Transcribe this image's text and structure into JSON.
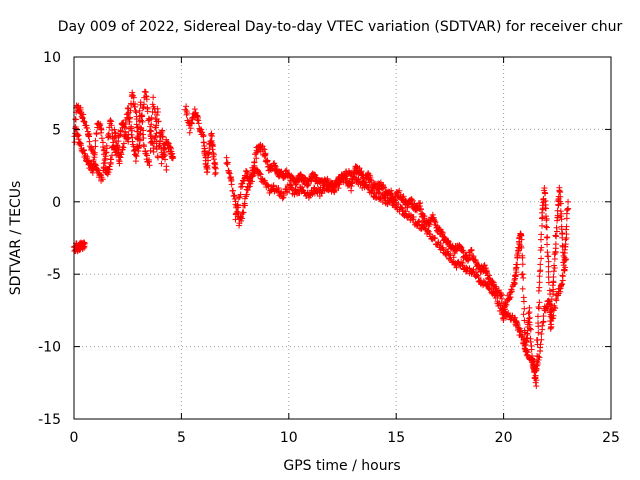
{
  "chart_data": {
    "type": "scatter",
    "title": "Day 009 of 2022, Sidereal Day-to-day VTEC variation (SDTVAR) for receiver chur",
    "xlabel": "GPS time / hours",
    "ylabel": "SDTVAR / TECUs",
    "xlim": [
      0,
      25
    ],
    "ylim": [
      -15,
      10
    ],
    "xticks": [
      0,
      5,
      10,
      15,
      20,
      25
    ],
    "yticks": [
      -15,
      -10,
      -5,
      0,
      5,
      10
    ],
    "grid": true,
    "marker": "+",
    "series": [
      {
        "name": "SDTVAR",
        "color": "#ff0000",
        "trace": [
          [
            0.0,
            3.5
          ],
          [
            0.1,
            6.5
          ],
          [
            0.3,
            6.3
          ],
          [
            0.5,
            5.5
          ],
          [
            0.7,
            4.5
          ],
          [
            0.9,
            3.0
          ],
          [
            1.1,
            2.0
          ],
          [
            1.3,
            1.6
          ],
          [
            1.5,
            3.5
          ],
          [
            1.7,
            5.8
          ],
          [
            1.9,
            3.2
          ],
          [
            2.1,
            4.5
          ],
          [
            2.3,
            5.5
          ],
          [
            2.5,
            4.0
          ],
          [
            2.7,
            7.5
          ],
          [
            2.9,
            6.0
          ],
          [
            3.0,
            3.5
          ],
          [
            3.1,
            5.0
          ],
          [
            3.3,
            7.8
          ],
          [
            3.5,
            5.5
          ],
          [
            3.7,
            3.5
          ],
          [
            3.9,
            6.5
          ],
          [
            4.1,
            2.8
          ],
          [
            4.3,
            4.2
          ],
          [
            4.5,
            3.5
          ],
          [
            4.6,
            3.0
          ]
        ],
        "band": [
          [
            0.1,
            5.0
          ],
          [
            0.3,
            4.0
          ],
          [
            0.5,
            3.2
          ],
          [
            0.7,
            2.6
          ],
          [
            0.9,
            2.2
          ],
          [
            1.1,
            5.5
          ],
          [
            1.3,
            4.8
          ],
          [
            1.5,
            2.0
          ],
          [
            1.7,
            2.5
          ],
          [
            1.9,
            5.0
          ],
          [
            2.1,
            2.8
          ],
          [
            2.3,
            3.8
          ],
          [
            2.5,
            6.5
          ],
          [
            2.7,
            4.5
          ],
          [
            2.9,
            3.0
          ],
          [
            3.1,
            6.8
          ],
          [
            3.3,
            3.5
          ],
          [
            3.5,
            2.5
          ],
          [
            3.7,
            7.2
          ],
          [
            3.9,
            3.2
          ],
          [
            4.1,
            5.0
          ],
          [
            4.3,
            2.2
          ]
        ],
        "segment_early": [
          [
            0.0,
            -3.2
          ],
          [
            0.1,
            -3.1
          ],
          [
            0.2,
            -3.2
          ],
          [
            0.3,
            -3.0
          ],
          [
            0.4,
            -3.1
          ],
          [
            0.5,
            -2.9
          ]
        ],
        "trace2": [
          [
            5.2,
            6.5
          ],
          [
            5.4,
            5.0
          ],
          [
            5.6,
            6.2
          ],
          [
            5.8,
            5.5
          ],
          [
            6.0,
            4.5
          ],
          [
            6.1,
            3.2
          ],
          [
            6.2,
            2.0
          ],
          [
            6.3,
            3.8
          ],
          [
            6.4,
            4.5
          ],
          [
            6.5,
            3.0
          ],
          [
            6.6,
            2.0
          ]
        ],
        "trace3": [
          [
            7.1,
            3.0
          ],
          [
            7.3,
            1.5
          ],
          [
            7.5,
            0.0
          ],
          [
            7.7,
            -1.5
          ],
          [
            7.9,
            -0.5
          ],
          [
            8.1,
            1.0
          ],
          [
            8.3,
            2.0
          ],
          [
            8.5,
            3.5
          ],
          [
            8.7,
            3.8
          ],
          [
            8.9,
            3.2
          ],
          [
            9.1,
            2.3
          ],
          [
            9.3,
            2.5
          ],
          [
            9.5,
            2.0
          ],
          [
            9.7,
            1.8
          ],
          [
            9.9,
            2.0
          ],
          [
            10.1,
            1.7
          ],
          [
            10.3,
            1.2
          ],
          [
            10.5,
            1.8
          ],
          [
            10.7,
            1.5
          ],
          [
            10.9,
            1.2
          ],
          [
            11.1,
            1.8
          ],
          [
            11.3,
            1.5
          ],
          [
            11.5,
            1.2
          ],
          [
            11.7,
            1.5
          ],
          [
            11.9,
            1.3
          ],
          [
            12.1,
            1.0
          ],
          [
            12.3,
            1.5
          ],
          [
            12.5,
            1.8
          ],
          [
            12.7,
            1.5
          ],
          [
            12.9,
            1.0
          ],
          [
            13.1,
            2.3
          ],
          [
            13.3,
            2.1
          ],
          [
            13.5,
            1.5
          ],
          [
            13.7,
            1.8
          ],
          [
            13.9,
            1.2
          ],
          [
            14.1,
            1.0
          ],
          [
            14.3,
            1.2
          ],
          [
            14.5,
            0.5
          ],
          [
            14.7,
            0.8
          ],
          [
            14.9,
            0.2
          ],
          [
            15.1,
            0.6
          ],
          [
            15.3,
            0.3
          ],
          [
            15.5,
            -0.2
          ],
          [
            15.7,
            0.0
          ],
          [
            15.9,
            -0.5
          ],
          [
            16.1,
            -0.3
          ],
          [
            16.3,
            -1.2
          ],
          [
            16.5,
            -1.5
          ],
          [
            16.7,
            -1.0
          ],
          [
            16.9,
            -1.8
          ],
          [
            17.1,
            -2.2
          ],
          [
            17.3,
            -2.6
          ],
          [
            17.5,
            -3.0
          ],
          [
            17.7,
            -3.4
          ],
          [
            17.9,
            -3.0
          ],
          [
            18.1,
            -3.6
          ],
          [
            18.3,
            -4.0
          ],
          [
            18.5,
            -3.5
          ],
          [
            18.7,
            -4.2
          ],
          [
            18.9,
            -4.8
          ],
          [
            19.1,
            -4.5
          ],
          [
            19.3,
            -5.2
          ],
          [
            19.5,
            -5.6
          ],
          [
            19.7,
            -6.2
          ],
          [
            19.9,
            -6.5
          ],
          [
            20.0,
            -8.0
          ],
          [
            20.1,
            -7.0
          ],
          [
            20.3,
            -6.5
          ],
          [
            20.5,
            -5.5
          ],
          [
            20.6,
            -4.5
          ],
          [
            20.7,
            -3.0
          ],
          [
            20.8,
            -2.0
          ],
          [
            20.9,
            -5.5
          ],
          [
            21.0,
            -10.0
          ],
          [
            21.1,
            -9.0
          ],
          [
            21.2,
            -7.5
          ],
          [
            21.3,
            -10.5
          ],
          [
            21.4,
            -11.5
          ],
          [
            21.5,
            -12.5
          ],
          [
            21.6,
            -8.5
          ],
          [
            21.7,
            -5.0
          ],
          [
            21.8,
            -1.0
          ],
          [
            21.9,
            0.8
          ],
          [
            22.0,
            -1.5
          ],
          [
            22.1,
            -5.0
          ],
          [
            22.2,
            -9.0
          ],
          [
            22.3,
            -6.0
          ],
          [
            22.4,
            -3.5
          ],
          [
            22.5,
            -1.0
          ],
          [
            22.6,
            1.0
          ],
          [
            22.7,
            -1.5
          ],
          [
            22.8,
            -4.5
          ],
          [
            22.9,
            -2.5
          ],
          [
            23.0,
            0.0
          ]
        ],
        "band3": [
          [
            7.5,
            -1.0
          ],
          [
            7.8,
            1.0
          ],
          [
            8.0,
            2.0
          ],
          [
            8.2,
            1.5
          ],
          [
            8.5,
            2.2
          ],
          [
            8.8,
            1.5
          ],
          [
            9.1,
            0.8
          ],
          [
            9.4,
            1.0
          ],
          [
            9.7,
            0.5
          ],
          [
            10.0,
            1.0
          ],
          [
            10.3,
            0.6
          ],
          [
            10.6,
            0.8
          ],
          [
            10.9,
            0.5
          ],
          [
            11.2,
            0.8
          ],
          [
            11.5,
            0.6
          ],
          [
            11.8,
            1.0
          ],
          [
            12.1,
            0.8
          ],
          [
            12.4,
            1.3
          ],
          [
            12.7,
            2.0
          ],
          [
            13.0,
            1.8
          ],
          [
            13.3,
            1.3
          ],
          [
            13.6,
            1.0
          ],
          [
            13.9,
            0.6
          ],
          [
            14.2,
            0.4
          ],
          [
            14.5,
            0.1
          ],
          [
            14.8,
            0.0
          ],
          [
            15.1,
            -0.4
          ],
          [
            15.4,
            -0.8
          ],
          [
            15.7,
            -1.2
          ],
          [
            16.0,
            -1.5
          ],
          [
            16.3,
            -1.8
          ],
          [
            16.6,
            -2.3
          ],
          [
            16.9,
            -2.9
          ],
          [
            17.2,
            -3.3
          ],
          [
            17.5,
            -3.8
          ],
          [
            17.8,
            -4.3
          ],
          [
            18.1,
            -4.4
          ],
          [
            18.4,
            -4.8
          ],
          [
            18.7,
            -5.0
          ],
          [
            19.0,
            -5.5
          ],
          [
            19.3,
            -5.8
          ],
          [
            19.6,
            -6.6
          ],
          [
            19.9,
            -7.5
          ],
          [
            20.2,
            -7.9
          ],
          [
            20.5,
            -8.2
          ],
          [
            20.7,
            -8.8
          ],
          [
            20.9,
            -9.5
          ],
          [
            21.1,
            -10.5
          ],
          [
            21.3,
            -11.0
          ],
          [
            21.5,
            -11.8
          ],
          [
            21.7,
            -10.2
          ],
          [
            21.9,
            -7.5
          ],
          [
            22.1,
            -7.0
          ],
          [
            22.3,
            -8.0
          ],
          [
            22.5,
            -6.5
          ],
          [
            22.7,
            -5.8
          ],
          [
            22.9,
            -4.0
          ]
        ]
      }
    ]
  }
}
